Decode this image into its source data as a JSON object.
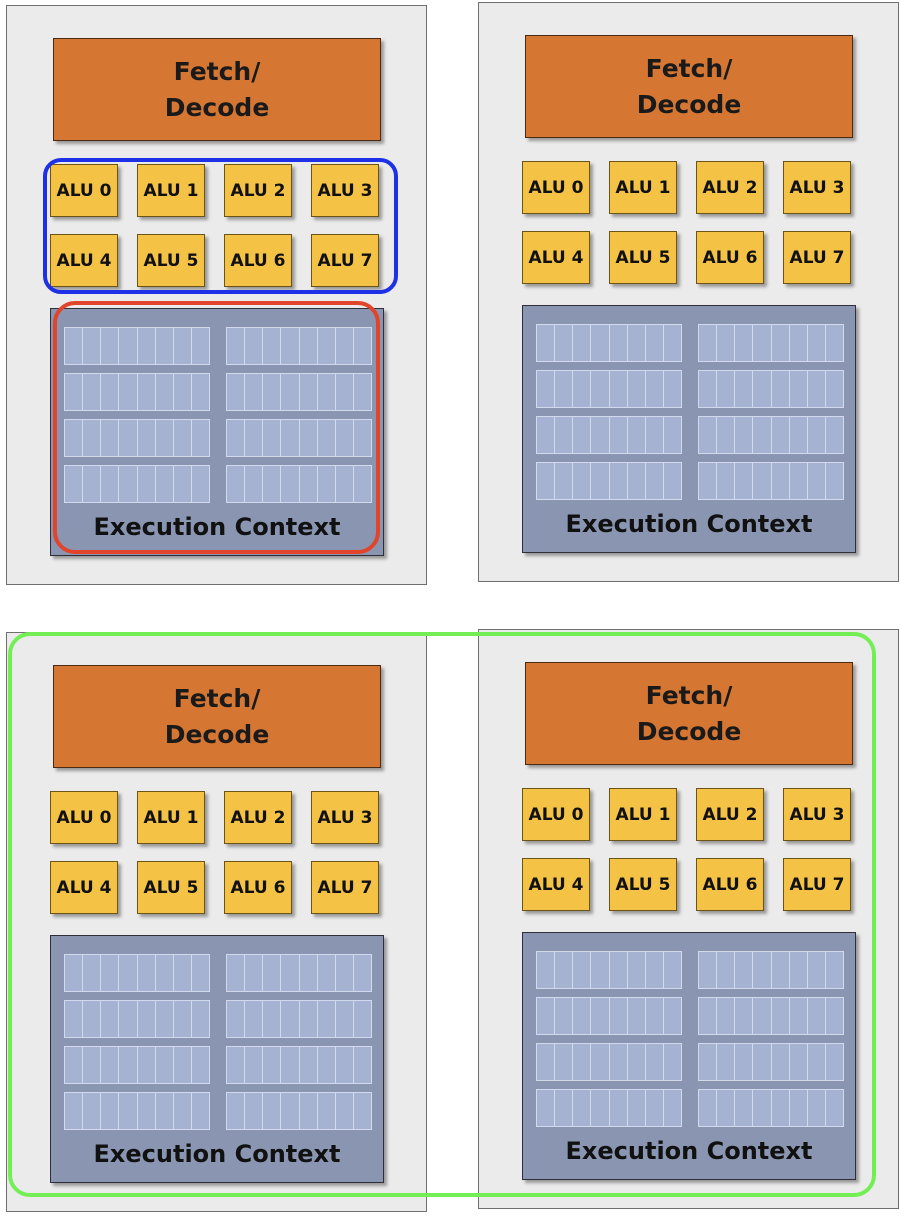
{
  "diagram": {
    "fetch_decode": [
      "Fetch/",
      "Decode"
    ],
    "alus": [
      "ALU 0",
      "ALU 1",
      "ALU 2",
      "ALU 3",
      "ALU 4",
      "ALU 5",
      "ALU 6",
      "ALU 7"
    ],
    "execution_context": "Execution Context",
    "core_count": 4,
    "register_rows": 4,
    "register_columns": 2,
    "cells_per_register": 8,
    "highlights": [
      {
        "target": "alu-group",
        "core": 0,
        "color": "#1f31e6"
      },
      {
        "target": "execution-context",
        "core": 0,
        "color": "#e0442a"
      },
      {
        "target": "bottom-cores",
        "color": "#74ee55"
      }
    ],
    "colors": {
      "fetch": "#d57633",
      "alu": "#f4c244",
      "context": "#8a96b1",
      "register": "#a5b2d2",
      "core_bg": "#ebebeb"
    }
  }
}
